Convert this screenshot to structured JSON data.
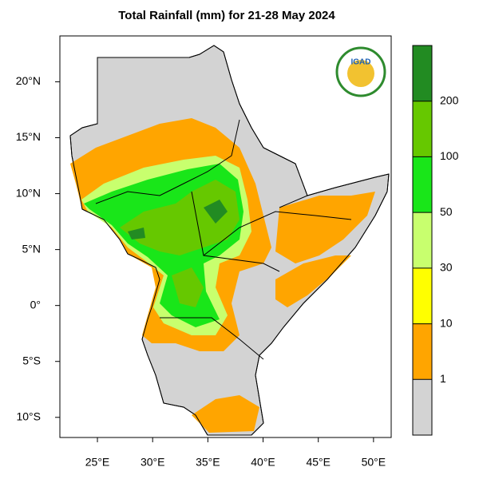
{
  "map": {
    "title": "Total Rainfall (mm) for 21-28 May 2024",
    "logo_text": "IGAD",
    "lonlim": [
      21.6,
      51.6
    ],
    "latlim": [
      -11.8,
      24.1
    ],
    "lon_ticks": [
      {
        "value": 25,
        "label": "25°E"
      },
      {
        "value": 30,
        "label": "30°E"
      },
      {
        "value": 35,
        "label": "35°E"
      },
      {
        "value": 40,
        "label": "40°E"
      },
      {
        "value": 45,
        "label": "45°E"
      },
      {
        "value": 50,
        "label": "50°E"
      }
    ],
    "lat_ticks": [
      {
        "value": 20,
        "label": "20°N"
      },
      {
        "value": 15,
        "label": "15°N"
      },
      {
        "value": 10,
        "label": "10°N"
      },
      {
        "value": 5,
        "label": "5°N"
      },
      {
        "value": 0,
        "label": "0°"
      },
      {
        "value": -5,
        "label": "5°S"
      },
      {
        "value": -10,
        "label": "10°S"
      }
    ],
    "legend": {
      "levels": [
        1,
        10,
        30,
        50,
        100,
        200
      ],
      "colors": [
        "#d3d3d3",
        "#ffa500",
        "#ffff00",
        "#c8ff6e",
        "#19e619",
        "#66c800",
        "#228b22"
      ]
    }
  }
}
